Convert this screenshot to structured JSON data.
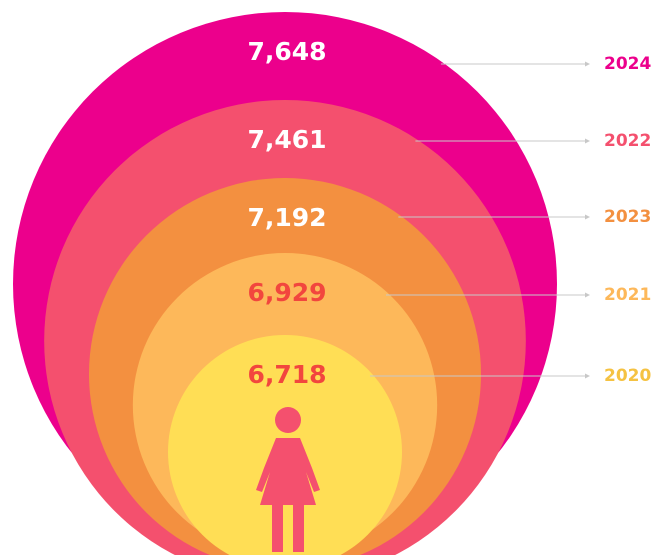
{
  "chart_data": {
    "type": "nested-circles",
    "categories": [
      "2024",
      "2022",
      "2023",
      "2021",
      "2020"
    ],
    "values": [
      7648,
      7461,
      7192,
      6929,
      6718
    ],
    "value_labels": [
      "7,648",
      "7,461",
      "7,192",
      "6,929",
      "6,718"
    ],
    "colors": [
      "#ec008c",
      "#f4506e",
      "#f39040",
      "#fdb85a",
      "#ffde55"
    ],
    "value_label_colors": [
      "#ffffff",
      "#ffffff",
      "#ffffff",
      "#f2463e",
      "#f2463e"
    ],
    "category_label_colors": [
      "#ec008c",
      "#f4506e",
      "#f39040",
      "#fdb85a",
      "#f5c242"
    ]
  }
}
